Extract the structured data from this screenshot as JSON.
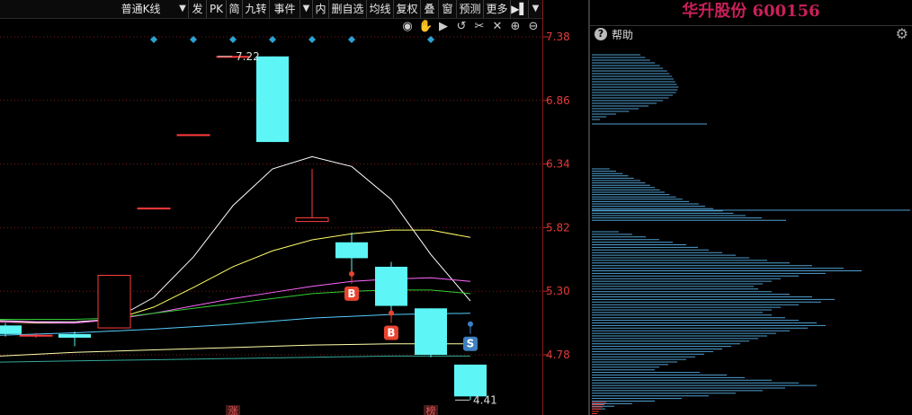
{
  "toolbar": {
    "period_select": "普通K线",
    "buttons": [
      "发",
      "PK",
      "简",
      "九转",
      "事件",
      "内",
      "删自选",
      "均线",
      "复权",
      "叠",
      "窗",
      "预测",
      "更多"
    ]
  },
  "stock_title": "华升股份 600156",
  "help_label": "帮助",
  "chart_data": {
    "type": "candlestick",
    "ylim": [
      4.25,
      7.55
    ],
    "y_ticks": [
      "7.38",
      "6.86",
      "6.34",
      "5.82",
      "5.30",
      "4.78"
    ],
    "candles": [
      {
        "x": 6,
        "open": 4.95,
        "close": 5.02,
        "high": 5.04,
        "low": 4.93,
        "color": "cyan"
      },
      {
        "x": 40,
        "open": 4.94,
        "close": 4.94,
        "high": 4.96,
        "low": 4.92,
        "color": "red"
      },
      {
        "x": 83,
        "open": 4.92,
        "close": 4.95,
        "high": 4.97,
        "low": 4.85,
        "color": "cyan"
      },
      {
        "x": 127,
        "open": 5.0,
        "close": 5.43,
        "high": 5.43,
        "low": 5.0,
        "color": "red"
      },
      {
        "x": 171,
        "open": 5.98,
        "close": 5.98,
        "high": 5.98,
        "low": 5.98,
        "color": "red"
      },
      {
        "x": 215,
        "open": 6.58,
        "close": 6.58,
        "high": 6.58,
        "low": 6.58,
        "color": "red"
      },
      {
        "x": 259,
        "open": 7.22,
        "close": 7.22,
        "high": 7.22,
        "low": 7.22,
        "color": "red"
      },
      {
        "x": 303,
        "open": 7.22,
        "close": 6.52,
        "high": 7.22,
        "low": 6.52,
        "color": "cyan"
      },
      {
        "x": 347,
        "open": 5.87,
        "close": 5.9,
        "high": 6.3,
        "low": 5.87,
        "color": "red"
      },
      {
        "x": 391,
        "open": 5.7,
        "close": 5.57,
        "high": 5.78,
        "low": 5.42,
        "color": "cyan"
      },
      {
        "x": 435,
        "open": 5.5,
        "close": 5.18,
        "high": 5.54,
        "low": 5.14,
        "color": "cyan"
      },
      {
        "x": 479,
        "open": 5.16,
        "close": 4.78,
        "high": 5.16,
        "low": 4.76,
        "color": "cyan"
      },
      {
        "x": 523,
        "open": 4.7,
        "close": 4.44,
        "high": 4.7,
        "low": 4.41,
        "color": "cyan"
      }
    ],
    "ma_lines": [
      {
        "color": "#ffffff",
        "points": [
          [
            0,
            5.06
          ],
          [
            40,
            5.05
          ],
          [
            83,
            5.05
          ],
          [
            127,
            5.07
          ],
          [
            171,
            5.25
          ],
          [
            215,
            5.58
          ],
          [
            259,
            6.0
          ],
          [
            303,
            6.3
          ],
          [
            347,
            6.4
          ],
          [
            391,
            6.32
          ],
          [
            435,
            6.05
          ],
          [
            479,
            5.6
          ],
          [
            523,
            5.22
          ]
        ]
      },
      {
        "color": "#ffff66",
        "points": [
          [
            0,
            5.05
          ],
          [
            40,
            5.04
          ],
          [
            83,
            5.04
          ],
          [
            127,
            5.07
          ],
          [
            171,
            5.17
          ],
          [
            215,
            5.33
          ],
          [
            259,
            5.5
          ],
          [
            303,
            5.63
          ],
          [
            347,
            5.72
          ],
          [
            391,
            5.77
          ],
          [
            435,
            5.8
          ],
          [
            479,
            5.8
          ],
          [
            523,
            5.74
          ]
        ]
      },
      {
        "color": "#ff66ff",
        "points": [
          [
            0,
            5.05
          ],
          [
            83,
            5.04
          ],
          [
            127,
            5.07
          ],
          [
            171,
            5.12
          ],
          [
            215,
            5.18
          ],
          [
            259,
            5.24
          ],
          [
            303,
            5.29
          ],
          [
            347,
            5.34
          ],
          [
            391,
            5.38
          ],
          [
            435,
            5.4
          ],
          [
            479,
            5.41
          ],
          [
            523,
            5.38
          ]
        ]
      },
      {
        "color": "#33cc33",
        "points": [
          [
            0,
            5.07
          ],
          [
            83,
            5.07
          ],
          [
            127,
            5.08
          ],
          [
            171,
            5.12
          ],
          [
            215,
            5.16
          ],
          [
            259,
            5.2
          ],
          [
            303,
            5.24
          ],
          [
            347,
            5.28
          ],
          [
            391,
            5.3
          ],
          [
            435,
            5.31
          ],
          [
            479,
            5.31
          ],
          [
            523,
            5.28
          ]
        ]
      },
      {
        "color": "#55ccff",
        "points": [
          [
            0,
            4.94
          ],
          [
            83,
            4.96
          ],
          [
            171,
            4.99
          ],
          [
            259,
            5.03
          ],
          [
            347,
            5.08
          ],
          [
            435,
            5.11
          ],
          [
            523,
            5.12
          ]
        ]
      },
      {
        "color": "#ffffaa",
        "points": [
          [
            0,
            4.77
          ],
          [
            83,
            4.8
          ],
          [
            171,
            4.82
          ],
          [
            259,
            4.84
          ],
          [
            347,
            4.86
          ],
          [
            435,
            4.87
          ],
          [
            523,
            4.87
          ]
        ]
      },
      {
        "color": "#33aa99",
        "points": [
          [
            0,
            4.72
          ],
          [
            83,
            4.73
          ],
          [
            171,
            4.74
          ],
          [
            259,
            4.75
          ],
          [
            347,
            4.76
          ],
          [
            435,
            4.77
          ],
          [
            523,
            4.77
          ]
        ]
      }
    ],
    "annotations": [
      {
        "text": "7.22",
        "x": 262,
        "y": 7.22
      },
      {
        "text": "4.41",
        "x": 526,
        "y": 4.41
      }
    ],
    "signals": [
      {
        "text": "B",
        "x": 391,
        "y": 5.28,
        "color": "#e8432f"
      },
      {
        "text": "B",
        "x": 435,
        "y": 4.96,
        "color": "#e8432f"
      },
      {
        "text": "S",
        "x": 523,
        "y": 4.87,
        "color": "#3e7fc1"
      }
    ],
    "event_markers_x": [
      171,
      215,
      259,
      303,
      347,
      391,
      479
    ],
    "bottom_markers": [
      {
        "text": "涨",
        "x": 259
      },
      {
        "text": "榜",
        "x": 479
      }
    ]
  },
  "volume_profile": {
    "top_group": [
      60,
      66,
      72,
      78,
      84,
      88,
      93,
      96,
      99,
      101,
      103,
      105,
      107,
      106,
      104,
      100,
      95,
      88,
      80,
      70,
      58,
      46,
      30,
      18,
      10
    ],
    "mid_group": [
      22,
      30,
      38,
      45,
      52,
      60,
      66,
      72,
      78,
      84,
      90,
      96,
      104,
      112,
      120,
      132,
      140,
      150,
      162,
      175,
      190,
      210,
      240
    ],
    "low_group": [
      30,
      45,
      60,
      75,
      90,
      105,
      118,
      130,
      145,
      160,
      175,
      195,
      220,
      245,
      280,
      300,
      260,
      230,
      210,
      200,
      190,
      180,
      185,
      200,
      220,
      245,
      270,
      255,
      230,
      210,
      200,
      190,
      200,
      215,
      230,
      250,
      260,
      240,
      220,
      205,
      195,
      185,
      175,
      165,
      155,
      145,
      135,
      125,
      115,
      105,
      95,
      85,
      75,
      70,
      120,
      150,
      170,
      200,
      230,
      250,
      215,
      190,
      160,
      130,
      100,
      70,
      45,
      25,
      15
    ]
  }
}
